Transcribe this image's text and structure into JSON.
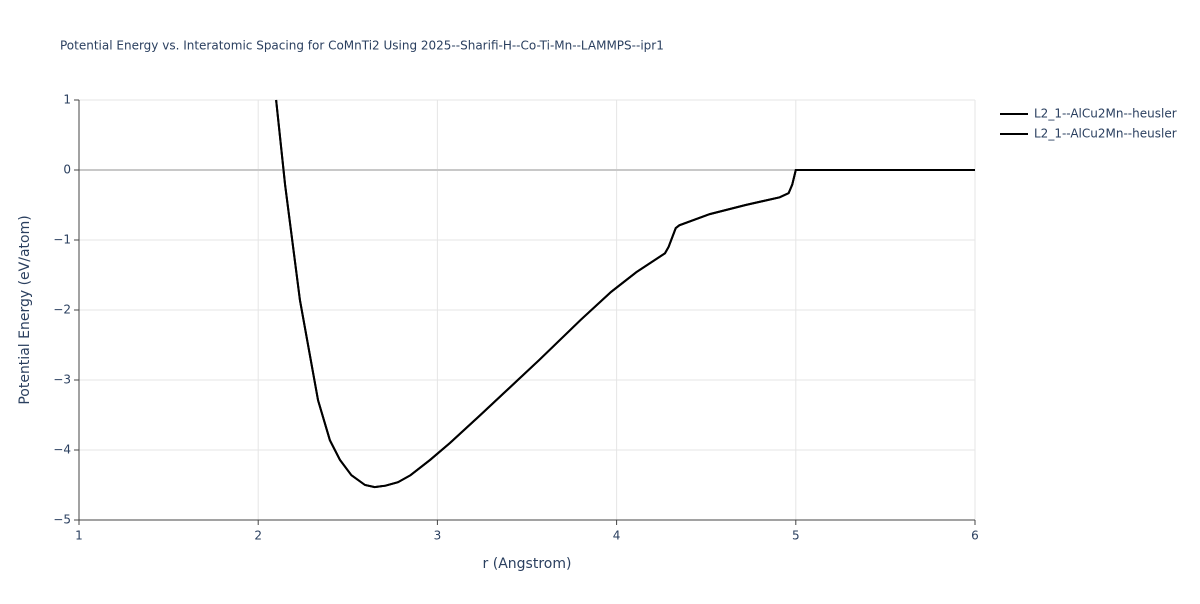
{
  "chart_data": {
    "type": "line",
    "title": "Potential Energy vs. Interatomic Spacing for CoMnTi2 Using 2025--Sharifi-H--Co-Ti-Mn--LAMMPS--ipr1",
    "x_label": "r (Angstrom)",
    "y_label": "Potential Energy (eV/atom)",
    "x": [
      2.1,
      2.15,
      2.233,
      2.334,
      2.4,
      2.456,
      2.52,
      2.596,
      2.65,
      2.71,
      2.78,
      2.85,
      2.96,
      3.07,
      3.24,
      3.57,
      3.8,
      3.97,
      4.11,
      4.27,
      4.29,
      4.33,
      4.35,
      4.52,
      4.72,
      4.91,
      4.96,
      4.98,
      5.0,
      6.0
    ],
    "series": [
      {
        "name": "L2_1--AlCu2Mn--heusler",
        "color": "#000000",
        "values": [
          1.0,
          -0.21,
          -1.86,
          -3.29,
          -3.86,
          -4.14,
          -4.36,
          -4.5,
          -4.53,
          -4.51,
          -4.46,
          -4.36,
          -4.14,
          -3.9,
          -3.5,
          -2.71,
          -2.14,
          -1.74,
          -1.46,
          -1.19,
          -1.1,
          -0.83,
          -0.79,
          -0.63,
          -0.5,
          -0.39,
          -0.33,
          -0.21,
          0,
          0
        ]
      },
      {
        "name": "L2_1--AlCu2Mn--heusler",
        "color": "#000000",
        "values": [
          1.0,
          -0.21,
          -1.86,
          -3.29,
          -3.86,
          -4.14,
          -4.36,
          -4.5,
          -4.53,
          -4.51,
          -4.46,
          -4.36,
          -4.14,
          -3.9,
          -3.5,
          -2.71,
          -2.14,
          -1.74,
          -1.46,
          -1.19,
          -1.1,
          -0.83,
          -0.79,
          -0.63,
          -0.5,
          -0.39,
          -0.33,
          -0.21,
          0,
          0
        ]
      }
    ],
    "xlim": [
      1,
      6
    ],
    "xticks": [
      1,
      2,
      3,
      4,
      5,
      6
    ],
    "ylim": [
      -5,
      1
    ],
    "yticks": [
      {
        "value": -5,
        "label": "−5"
      },
      {
        "value": -4,
        "label": "−4"
      },
      {
        "value": -3,
        "label": "−3"
      },
      {
        "value": -2,
        "label": "−2"
      },
      {
        "value": -1,
        "label": "−1"
      },
      0,
      1
    ],
    "grid": true
  }
}
